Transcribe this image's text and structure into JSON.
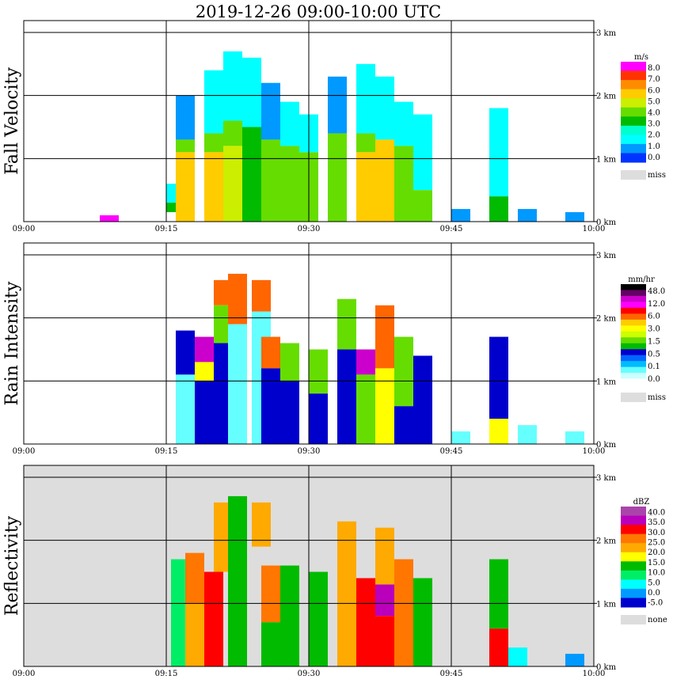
{
  "title": "2019-12-26   09:00-10:00 UTC",
  "x_ticks": [
    "09:00",
    "09:15",
    "09:30",
    "09:45",
    "10:00"
  ],
  "y_ticks": [
    "0 km",
    "1 km",
    "2 km",
    "3 km"
  ],
  "chart_data": [
    {
      "type": "heatmap",
      "ylabel": "Fall Velocity",
      "xlim": [
        "09:00",
        "10:00"
      ],
      "ylim_km": [
        0,
        3.0
      ],
      "grid": true,
      "colorbar_unit": "m/s",
      "colorbar_labels": [
        "8.0",
        "7.0",
        "6.0",
        "5.0",
        "4.0",
        "3.0",
        "2.0",
        "1.0",
        "0.0"
      ],
      "colorbar_colors": [
        "#ff00ff",
        "#ff3300",
        "#ff8c00",
        "#ffcc00",
        "#ccee00",
        "#66dd00",
        "#00bb00",
        "#00ffcc",
        "#00ffff",
        "#0099ff",
        "#0033ff"
      ],
      "missing_label": "miss",
      "missing_color": "#dddddd",
      "background_color": "#ffffff",
      "cells": [
        {
          "t": 9.0,
          "h0": 0.0,
          "h1": 0.1,
          "v": 8.0
        },
        {
          "t": 16.0,
          "h0": 0.3,
          "h1": 0.6,
          "v": 2.0
        },
        {
          "t": 16.0,
          "h0": 0.15,
          "h1": 0.3,
          "v": 3.0
        },
        {
          "t": 17.0,
          "h0": 1.3,
          "h1": 2.0,
          "v": 1.5
        },
        {
          "t": 17.0,
          "h0": 1.1,
          "h1": 1.3,
          "v": 4.0
        },
        {
          "t": 17.0,
          "h0": 0.0,
          "h1": 1.1,
          "v": 6.5
        },
        {
          "t": 20.0,
          "h0": 1.4,
          "h1": 2.4,
          "v": 2.0
        },
        {
          "t": 20.0,
          "h0": 1.1,
          "h1": 1.4,
          "v": 4.5
        },
        {
          "t": 20.0,
          "h0": 0.0,
          "h1": 1.1,
          "v": 6.0
        },
        {
          "t": 22.0,
          "h0": 1.6,
          "h1": 2.7,
          "v": 2.2
        },
        {
          "t": 22.0,
          "h0": 1.2,
          "h1": 1.6,
          "v": 4.0
        },
        {
          "t": 22.0,
          "h0": 0.0,
          "h1": 1.2,
          "v": 5.5
        },
        {
          "t": 24.0,
          "h0": 1.5,
          "h1": 2.6,
          "v": 2.0
        },
        {
          "t": 24.0,
          "h0": 0.0,
          "h1": 1.5,
          "v": 3.5
        },
        {
          "t": 26.0,
          "h0": 1.3,
          "h1": 2.2,
          "v": 1.8
        },
        {
          "t": 26.0,
          "h0": 0.0,
          "h1": 1.3,
          "v": 4.0
        },
        {
          "t": 28.0,
          "h0": 1.2,
          "h1": 1.9,
          "v": 2.0
        },
        {
          "t": 28.0,
          "h0": 0.0,
          "h1": 1.2,
          "v": 4.5
        },
        {
          "t": 30.0,
          "h0": 1.1,
          "h1": 1.7,
          "v": 2.0
        },
        {
          "t": 30.0,
          "h0": 0.0,
          "h1": 1.1,
          "v": 4.0
        },
        {
          "t": 33.0,
          "h0": 1.4,
          "h1": 2.3,
          "v": 1.8
        },
        {
          "t": 33.0,
          "h0": 0.0,
          "h1": 1.4,
          "v": 4.0
        },
        {
          "t": 36.0,
          "h0": 1.4,
          "h1": 2.5,
          "v": 2.0
        },
        {
          "t": 36.0,
          "h0": 1.1,
          "h1": 1.4,
          "v": 4.5
        },
        {
          "t": 36.0,
          "h0": 0.0,
          "h1": 1.1,
          "v": 6.5
        },
        {
          "t": 38.0,
          "h0": 1.3,
          "h1": 2.3,
          "v": 2.0
        },
        {
          "t": 38.0,
          "h0": 0.0,
          "h1": 1.3,
          "v": 6.0
        },
        {
          "t": 40.0,
          "h0": 1.2,
          "h1": 1.9,
          "v": 2.0
        },
        {
          "t": 40.0,
          "h0": 0.0,
          "h1": 1.2,
          "v": 4.0
        },
        {
          "t": 42.0,
          "h0": 0.5,
          "h1": 1.7,
          "v": 2.5
        },
        {
          "t": 42.0,
          "h0": 0.0,
          "h1": 0.5,
          "v": 4.0
        },
        {
          "t": 46.0,
          "h0": 0.0,
          "h1": 0.2,
          "v": 1.5
        },
        {
          "t": 50.0,
          "h0": 0.4,
          "h1": 1.8,
          "v": 2.5
        },
        {
          "t": 50.0,
          "h0": 0.0,
          "h1": 0.4,
          "v": 3.5
        },
        {
          "t": 53.0,
          "h0": 0.0,
          "h1": 0.2,
          "v": 1.5
        },
        {
          "t": 58.0,
          "h0": 0.0,
          "h1": 0.15,
          "v": 1.0
        }
      ]
    },
    {
      "type": "heatmap",
      "ylabel": "Rain Intensity",
      "xlim": [
        "09:00",
        "10:00"
      ],
      "ylim_km": [
        0,
        3.0
      ],
      "grid": true,
      "colorbar_unit": "mm/hr",
      "colorbar_labels": [
        "48.0",
        "12.0",
        "6.0",
        "3.0",
        "1.5",
        "0.5",
        "0.1",
        "0.0"
      ],
      "colorbar_colors": [
        "#000000",
        "#660066",
        "#cc00cc",
        "#ff00ff",
        "#ff0000",
        "#ff6600",
        "#ffcc00",
        "#ffff00",
        "#ccff00",
        "#66dd00",
        "#00bb00",
        "#0000cc",
        "#0066ff",
        "#00bbff",
        "#66ffff",
        "#ccffff",
        "#ffffff"
      ],
      "missing_label": "miss",
      "missing_color": "#dddddd",
      "background_color": "#ffffff",
      "cells": [
        {
          "t": 17.0,
          "h0": 1.1,
          "h1": 1.8,
          "v": 0.5
        },
        {
          "t": 17.0,
          "h0": 0.0,
          "h1": 1.1,
          "v": 0.1
        },
        {
          "t": 19.0,
          "h0": 1.3,
          "h1": 1.7,
          "v": 12.0
        },
        {
          "t": 19.0,
          "h0": 1.0,
          "h1": 1.3,
          "v": 3.0
        },
        {
          "t": 19.0,
          "h0": 0.0,
          "h1": 1.0,
          "v": 1.0
        },
        {
          "t": 21.0,
          "h0": 2.2,
          "h1": 2.6,
          "v": 6.0
        },
        {
          "t": 21.0,
          "h0": 1.6,
          "h1": 2.2,
          "v": 1.5
        },
        {
          "t": 21.0,
          "h0": 0.0,
          "h1": 1.6,
          "v": 0.5
        },
        {
          "t": 22.5,
          "h0": 1.9,
          "h1": 2.7,
          "v": 6.0
        },
        {
          "t": 22.5,
          "h0": 0.0,
          "h1": 1.9,
          "v": 0.3
        },
        {
          "t": 25.0,
          "h0": 2.1,
          "h1": 2.6,
          "v": 6.0
        },
        {
          "t": 25.0,
          "h0": 0.0,
          "h1": 2.1,
          "v": 0.2
        },
        {
          "t": 26.0,
          "h0": 1.2,
          "h1": 1.7,
          "v": 6.0
        },
        {
          "t": 26.0,
          "h0": 0.0,
          "h1": 1.2,
          "v": 0.5
        },
        {
          "t": 28.0,
          "h0": 1.0,
          "h1": 1.6,
          "v": 1.5
        },
        {
          "t": 28.0,
          "h0": 0.0,
          "h1": 1.0,
          "v": 0.5
        },
        {
          "t": 31.0,
          "h0": 0.8,
          "h1": 1.5,
          "v": 1.5
        },
        {
          "t": 31.0,
          "h0": 0.0,
          "h1": 0.8,
          "v": 0.5
        },
        {
          "t": 34.0,
          "h0": 1.5,
          "h1": 2.3,
          "v": 1.5
        },
        {
          "t": 34.0,
          "h0": 0.0,
          "h1": 1.5,
          "v": 0.5
        },
        {
          "t": 36.0,
          "h0": 1.1,
          "h1": 1.5,
          "v": 12.0
        },
        {
          "t": 36.0,
          "h0": 0.0,
          "h1": 1.1,
          "v": 1.5
        },
        {
          "t": 38.0,
          "h0": 1.2,
          "h1": 2.2,
          "v": 6.0
        },
        {
          "t": 38.0,
          "h0": 0.0,
          "h1": 1.2,
          "v": 3.0
        },
        {
          "t": 40.0,
          "h0": 0.6,
          "h1": 1.7,
          "v": 1.5
        },
        {
          "t": 40.0,
          "h0": 0.0,
          "h1": 0.6,
          "v": 0.5
        },
        {
          "t": 42.0,
          "h0": 0.0,
          "h1": 1.4,
          "v": 0.5
        },
        {
          "t": 46.0,
          "h0": 0.0,
          "h1": 0.2,
          "v": 0.1
        },
        {
          "t": 50.0,
          "h0": 0.4,
          "h1": 1.7,
          "v": 0.5
        },
        {
          "t": 50.0,
          "h0": 0.0,
          "h1": 0.4,
          "v": 3.0
        },
        {
          "t": 53.0,
          "h0": 0.0,
          "h1": 0.3,
          "v": 0.1
        },
        {
          "t": 58.0,
          "h0": 0.0,
          "h1": 0.2,
          "v": 0.1
        }
      ]
    },
    {
      "type": "heatmap",
      "ylabel": "Reflectivity",
      "xlim": [
        "09:00",
        "10:00"
      ],
      "ylim_km": [
        0,
        3.0
      ],
      "grid": true,
      "colorbar_unit": "dBZ",
      "colorbar_labels": [
        "40.0",
        "35.0",
        "30.0",
        "25.0",
        "20.0",
        "15.0",
        "10.0",
        "5.0",
        "0.0",
        "-5.0"
      ],
      "colorbar_colors": [
        "#aa44aa",
        "#bb00bb",
        "#ff0000",
        "#ff7700",
        "#ffaa00",
        "#ffff00",
        "#00bb00",
        "#00ee66",
        "#00ffff",
        "#0099ff",
        "#0000cc"
      ],
      "missing_label": "none",
      "missing_color": "#dddddd",
      "background_color": "#dddddd",
      "cells": [
        {
          "t": 16.5,
          "h0": 0.0,
          "h1": 1.7,
          "v": 10.0
        },
        {
          "t": 18.0,
          "h0": 1.0,
          "h1": 1.8,
          "v": 25.0
        },
        {
          "t": 18.0,
          "h0": 0.0,
          "h1": 1.0,
          "v": 20.0
        },
        {
          "t": 20.0,
          "h0": 0.0,
          "h1": 1.5,
          "v": 30.0
        },
        {
          "t": 21.0,
          "h0": 1.5,
          "h1": 2.6,
          "v": 20.0
        },
        {
          "t": 22.5,
          "h0": 0.0,
          "h1": 2.7,
          "v": 15.0
        },
        {
          "t": 25.0,
          "h0": 1.9,
          "h1": 2.6,
          "v": 20.0
        },
        {
          "t": 26.0,
          "h0": 0.7,
          "h1": 1.6,
          "v": 25.0
        },
        {
          "t": 26.0,
          "h0": 0.0,
          "h1": 0.7,
          "v": 15.0
        },
        {
          "t": 28.0,
          "h0": 0.0,
          "h1": 1.6,
          "v": 15.0
        },
        {
          "t": 31.0,
          "h0": 0.0,
          "h1": 1.5,
          "v": 15.0
        },
        {
          "t": 34.0,
          "h0": 0.0,
          "h1": 2.3,
          "v": 20.0
        },
        {
          "t": 36.0,
          "h0": 0.0,
          "h1": 1.4,
          "v": 30.0
        },
        {
          "t": 38.0,
          "h0": 0.8,
          "h1": 1.3,
          "v": 35.0
        },
        {
          "t": 38.0,
          "h0": 0.0,
          "h1": 0.8,
          "v": 30.0
        },
        {
          "t": 38.0,
          "h0": 1.3,
          "h1": 2.2,
          "v": 20.0
        },
        {
          "t": 40.0,
          "h0": 0.0,
          "h1": 1.7,
          "v": 25.0
        },
        {
          "t": 42.0,
          "h0": 0.0,
          "h1": 1.4,
          "v": 15.0
        },
        {
          "t": 50.0,
          "h0": 0.0,
          "h1": 0.6,
          "v": 30.0
        },
        {
          "t": 50.0,
          "h0": 0.6,
          "h1": 1.7,
          "v": 15.0
        },
        {
          "t": 52.0,
          "h0": 0.0,
          "h1": 0.3,
          "v": 5.0
        },
        {
          "t": 58.0,
          "h0": 0.0,
          "h1": 0.2,
          "v": 0.0
        }
      ]
    }
  ]
}
